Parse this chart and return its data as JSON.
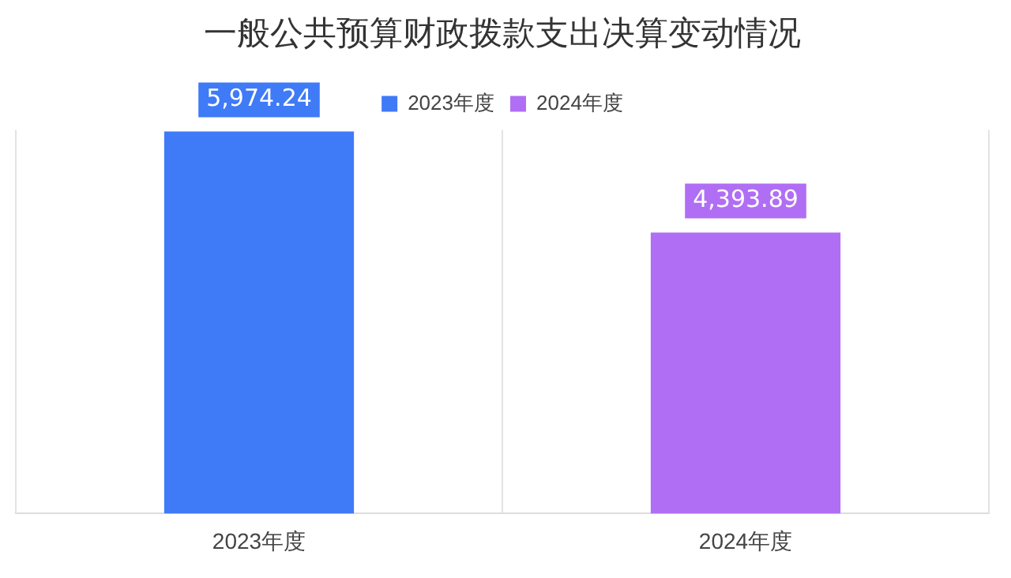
{
  "chart_data": {
    "type": "bar",
    "title": "一般公共预算财政拨款支出决算变动情况",
    "categories": [
      "2023年度",
      "2024年度"
    ],
    "series": [
      {
        "name": "2023年度",
        "color": "#3f7af7",
        "values": [
          5974.24,
          null
        ],
        "value_labels": [
          "5,974.24",
          null
        ]
      },
      {
        "name": "2024年度",
        "color": "#b06ef5",
        "values": [
          null,
          4393.89
        ],
        "value_labels": [
          null,
          "4,393.89"
        ]
      }
    ],
    "grid": "x",
    "legend": "top"
  }
}
